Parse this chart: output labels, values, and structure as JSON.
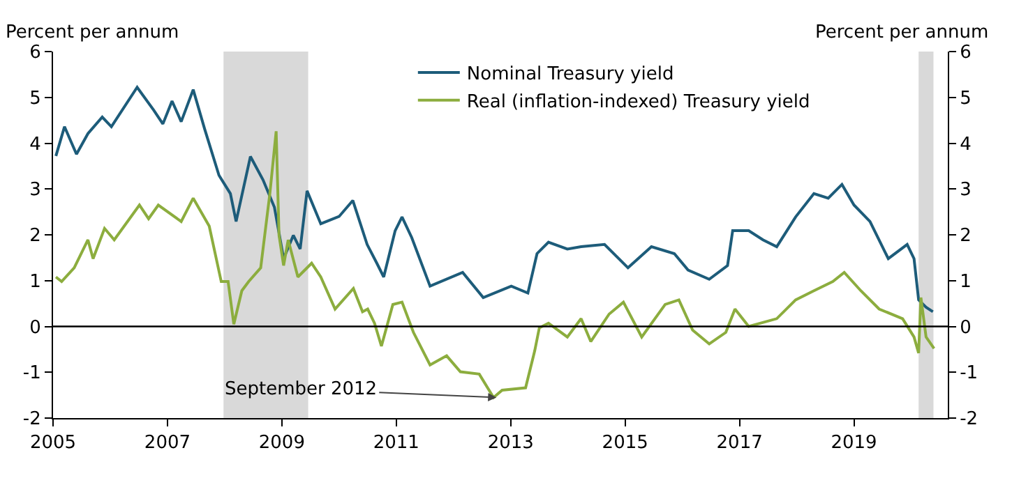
{
  "chart_data": {
    "type": "line",
    "ylabel": "Percent per annum",
    "y2label": "Percent per annum",
    "xlim": [
      2005,
      2020.64
    ],
    "xticks": [
      2005,
      2007,
      2009,
      2011,
      2013,
      2015,
      2017,
      2019
    ],
    "ylim": [
      -2,
      6
    ],
    "yticks": [
      -2,
      -1,
      0,
      1,
      2,
      3,
      4,
      5,
      6
    ],
    "y2lim": [
      -2,
      6
    ],
    "y2ticks": [
      -2,
      -1,
      0,
      1,
      2,
      3,
      4,
      5,
      6
    ],
    "grid": false,
    "legend": "top",
    "marker": "none",
    "line_style": "solid",
    "series": [
      {
        "name": "Nominal Treasury yield",
        "color": "#1d5c7a",
        "x": [
          2005.05,
          2005.2,
          2005.41,
          2005.61,
          2005.86,
          2006.02,
          2006.47,
          2006.76,
          2006.92,
          2007.08,
          2007.24,
          2007.45,
          2007.65,
          2007.9,
          2008.1,
          2008.2,
          2008.45,
          2008.67,
          2008.87,
          2009.03,
          2009.2,
          2009.32,
          2009.44,
          2009.68,
          2010.0,
          2010.24,
          2010.49,
          2010.66,
          2010.78,
          2010.98,
          2011.1,
          2011.27,
          2011.59,
          2012.16,
          2012.52,
          2013.01,
          2013.3,
          2013.46,
          2013.66,
          2013.99,
          2014.23,
          2014.64,
          2015.05,
          2015.46,
          2015.86,
          2016.1,
          2016.47,
          2016.79,
          2016.88,
          2017.16,
          2017.41,
          2017.65,
          2017.98,
          2018.3,
          2018.55,
          2018.79,
          2019.0,
          2019.28,
          2019.6,
          2019.93,
          2020.05,
          2020.13,
          2020.26,
          2020.38
        ],
        "values": [
          3.72,
          4.36,
          3.76,
          4.21,
          4.57,
          4.36,
          5.22,
          4.72,
          4.42,
          4.92,
          4.47,
          5.17,
          4.31,
          3.3,
          2.9,
          2.29,
          3.71,
          3.2,
          2.6,
          1.48,
          1.99,
          1.69,
          2.96,
          2.24,
          2.4,
          2.75,
          1.79,
          1.38,
          1.08,
          2.09,
          2.39,
          1.94,
          0.88,
          1.18,
          0.63,
          0.88,
          0.73,
          1.59,
          1.84,
          1.69,
          1.74,
          1.79,
          1.28,
          1.74,
          1.59,
          1.23,
          1.03,
          1.33,
          2.09,
          2.09,
          1.89,
          1.74,
          2.39,
          2.9,
          2.8,
          3.1,
          2.65,
          2.29,
          1.48,
          1.79,
          1.48,
          0.58,
          0.42,
          0.32
        ]
      },
      {
        "name": "Real (inflation-indexed) Treasury yield",
        "color": "#8cad3e",
        "x": [
          2005.05,
          2005.15,
          2005.37,
          2005.61,
          2005.7,
          2005.9,
          2006.07,
          2006.51,
          2006.67,
          2006.84,
          2007.24,
          2007.45,
          2007.73,
          2007.94,
          2008.06,
          2008.16,
          2008.3,
          2008.42,
          2008.63,
          2008.79,
          2008.9,
          2008.95,
          2009.03,
          2009.11,
          2009.28,
          2009.52,
          2009.68,
          2009.93,
          2010.25,
          2010.41,
          2010.5,
          2010.62,
          2010.74,
          2010.94,
          2011.1,
          2011.3,
          2011.59,
          2011.88,
          2012.12,
          2012.45,
          2012.7,
          2012.85,
          2013.26,
          2013.42,
          2013.5,
          2013.66,
          2013.99,
          2014.23,
          2014.4,
          2014.72,
          2014.97,
          2015.29,
          2015.7,
          2015.94,
          2016.18,
          2016.47,
          2016.76,
          2016.92,
          2017.16,
          2017.65,
          2017.98,
          2018.3,
          2018.63,
          2018.83,
          2019.12,
          2019.44,
          2019.85,
          2020.05,
          2020.13,
          2020.17,
          2020.26,
          2020.4
        ],
        "values": [
          1.08,
          0.98,
          1.28,
          1.89,
          1.48,
          2.14,
          1.89,
          2.65,
          2.35,
          2.65,
          2.29,
          2.8,
          2.19,
          0.98,
          0.98,
          0.05,
          0.78,
          0.98,
          1.28,
          2.9,
          4.26,
          1.99,
          1.33,
          1.89,
          1.08,
          1.38,
          1.08,
          0.38,
          0.83,
          0.32,
          0.38,
          0.07,
          -0.43,
          0.48,
          0.53,
          -0.13,
          -0.84,
          -0.64,
          -0.99,
          -1.04,
          -1.55,
          -1.39,
          -1.34,
          -0.53,
          -0.03,
          0.07,
          -0.23,
          0.17,
          -0.33,
          0.27,
          0.53,
          -0.23,
          0.48,
          0.58,
          -0.08,
          -0.38,
          -0.13,
          0.38,
          0.0,
          0.17,
          0.58,
          0.78,
          0.98,
          1.18,
          0.78,
          0.38,
          0.17,
          -0.23,
          -0.58,
          0.63,
          -0.23,
          -0.48
        ]
      }
    ],
    "ref_lines": [
      {
        "axis": "y",
        "value": 0,
        "color": "#000000",
        "line_style": "solid"
      }
    ],
    "bands": [
      {
        "axis": "x",
        "from": 2007.98,
        "to": 2009.46,
        "color": "#d9d9d9"
      },
      {
        "axis": "x",
        "from": 2020.13,
        "to": 2020.39,
        "color": "#d9d9d9"
      }
    ],
    "annotations": [
      {
        "text": "September 2012",
        "x": 2012.75,
        "y": -1.55
      }
    ]
  }
}
